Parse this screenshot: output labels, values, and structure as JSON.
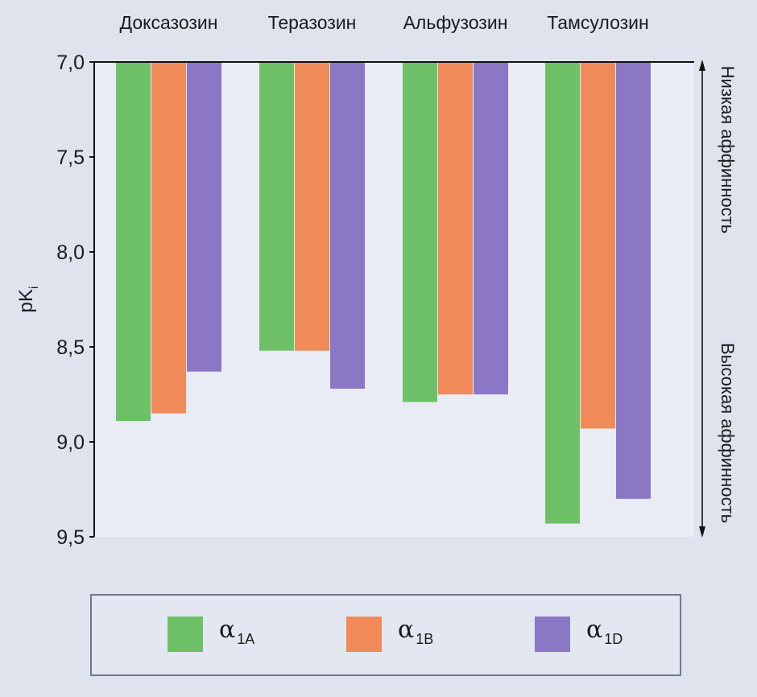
{
  "chart_data": {
    "type": "bar",
    "categories": [
      "Доксазозин",
      "Теразозин",
      "Альфузозин",
      "Тамсулозин"
    ],
    "series": [
      {
        "name": "α1A",
        "values": [
          8.89,
          8.52,
          8.79,
          9.43
        ]
      },
      {
        "name": "α1B",
        "values": [
          8.85,
          8.52,
          8.75,
          8.93
        ]
      },
      {
        "name": "α1D",
        "values": [
          8.63,
          8.72,
          8.75,
          9.3
        ]
      }
    ],
    "ylabel": "pKi",
    "ylabel_main": "pK",
    "ylabel_sub": "i",
    "ylim": [
      7.0,
      9.5
    ],
    "y_inverted": true,
    "y_ticks": [
      "7,0",
      "7,5",
      "8,0",
      "8,5",
      "9,0",
      "9,5"
    ],
    "y_tick_values": [
      7.0,
      7.5,
      8.0,
      8.5,
      9.0,
      9.5
    ],
    "right_annotation_top": "Низкая аффинность",
    "right_annotation_bottom": "Высокая аффинность",
    "colors": {
      "α1A": "#6dc066",
      "α1B": "#f08a58",
      "α1D": "#8a77c6"
    },
    "legend_position": "bottom",
    "grid": false
  },
  "legend": {
    "items": [
      {
        "symbol": "α",
        "sub": "1A",
        "color": "#6dc066"
      },
      {
        "symbol": "α",
        "sub": "1B",
        "color": "#f08a58"
      },
      {
        "symbol": "α",
        "sub": "1D",
        "color": "#8a77c6"
      }
    ]
  }
}
